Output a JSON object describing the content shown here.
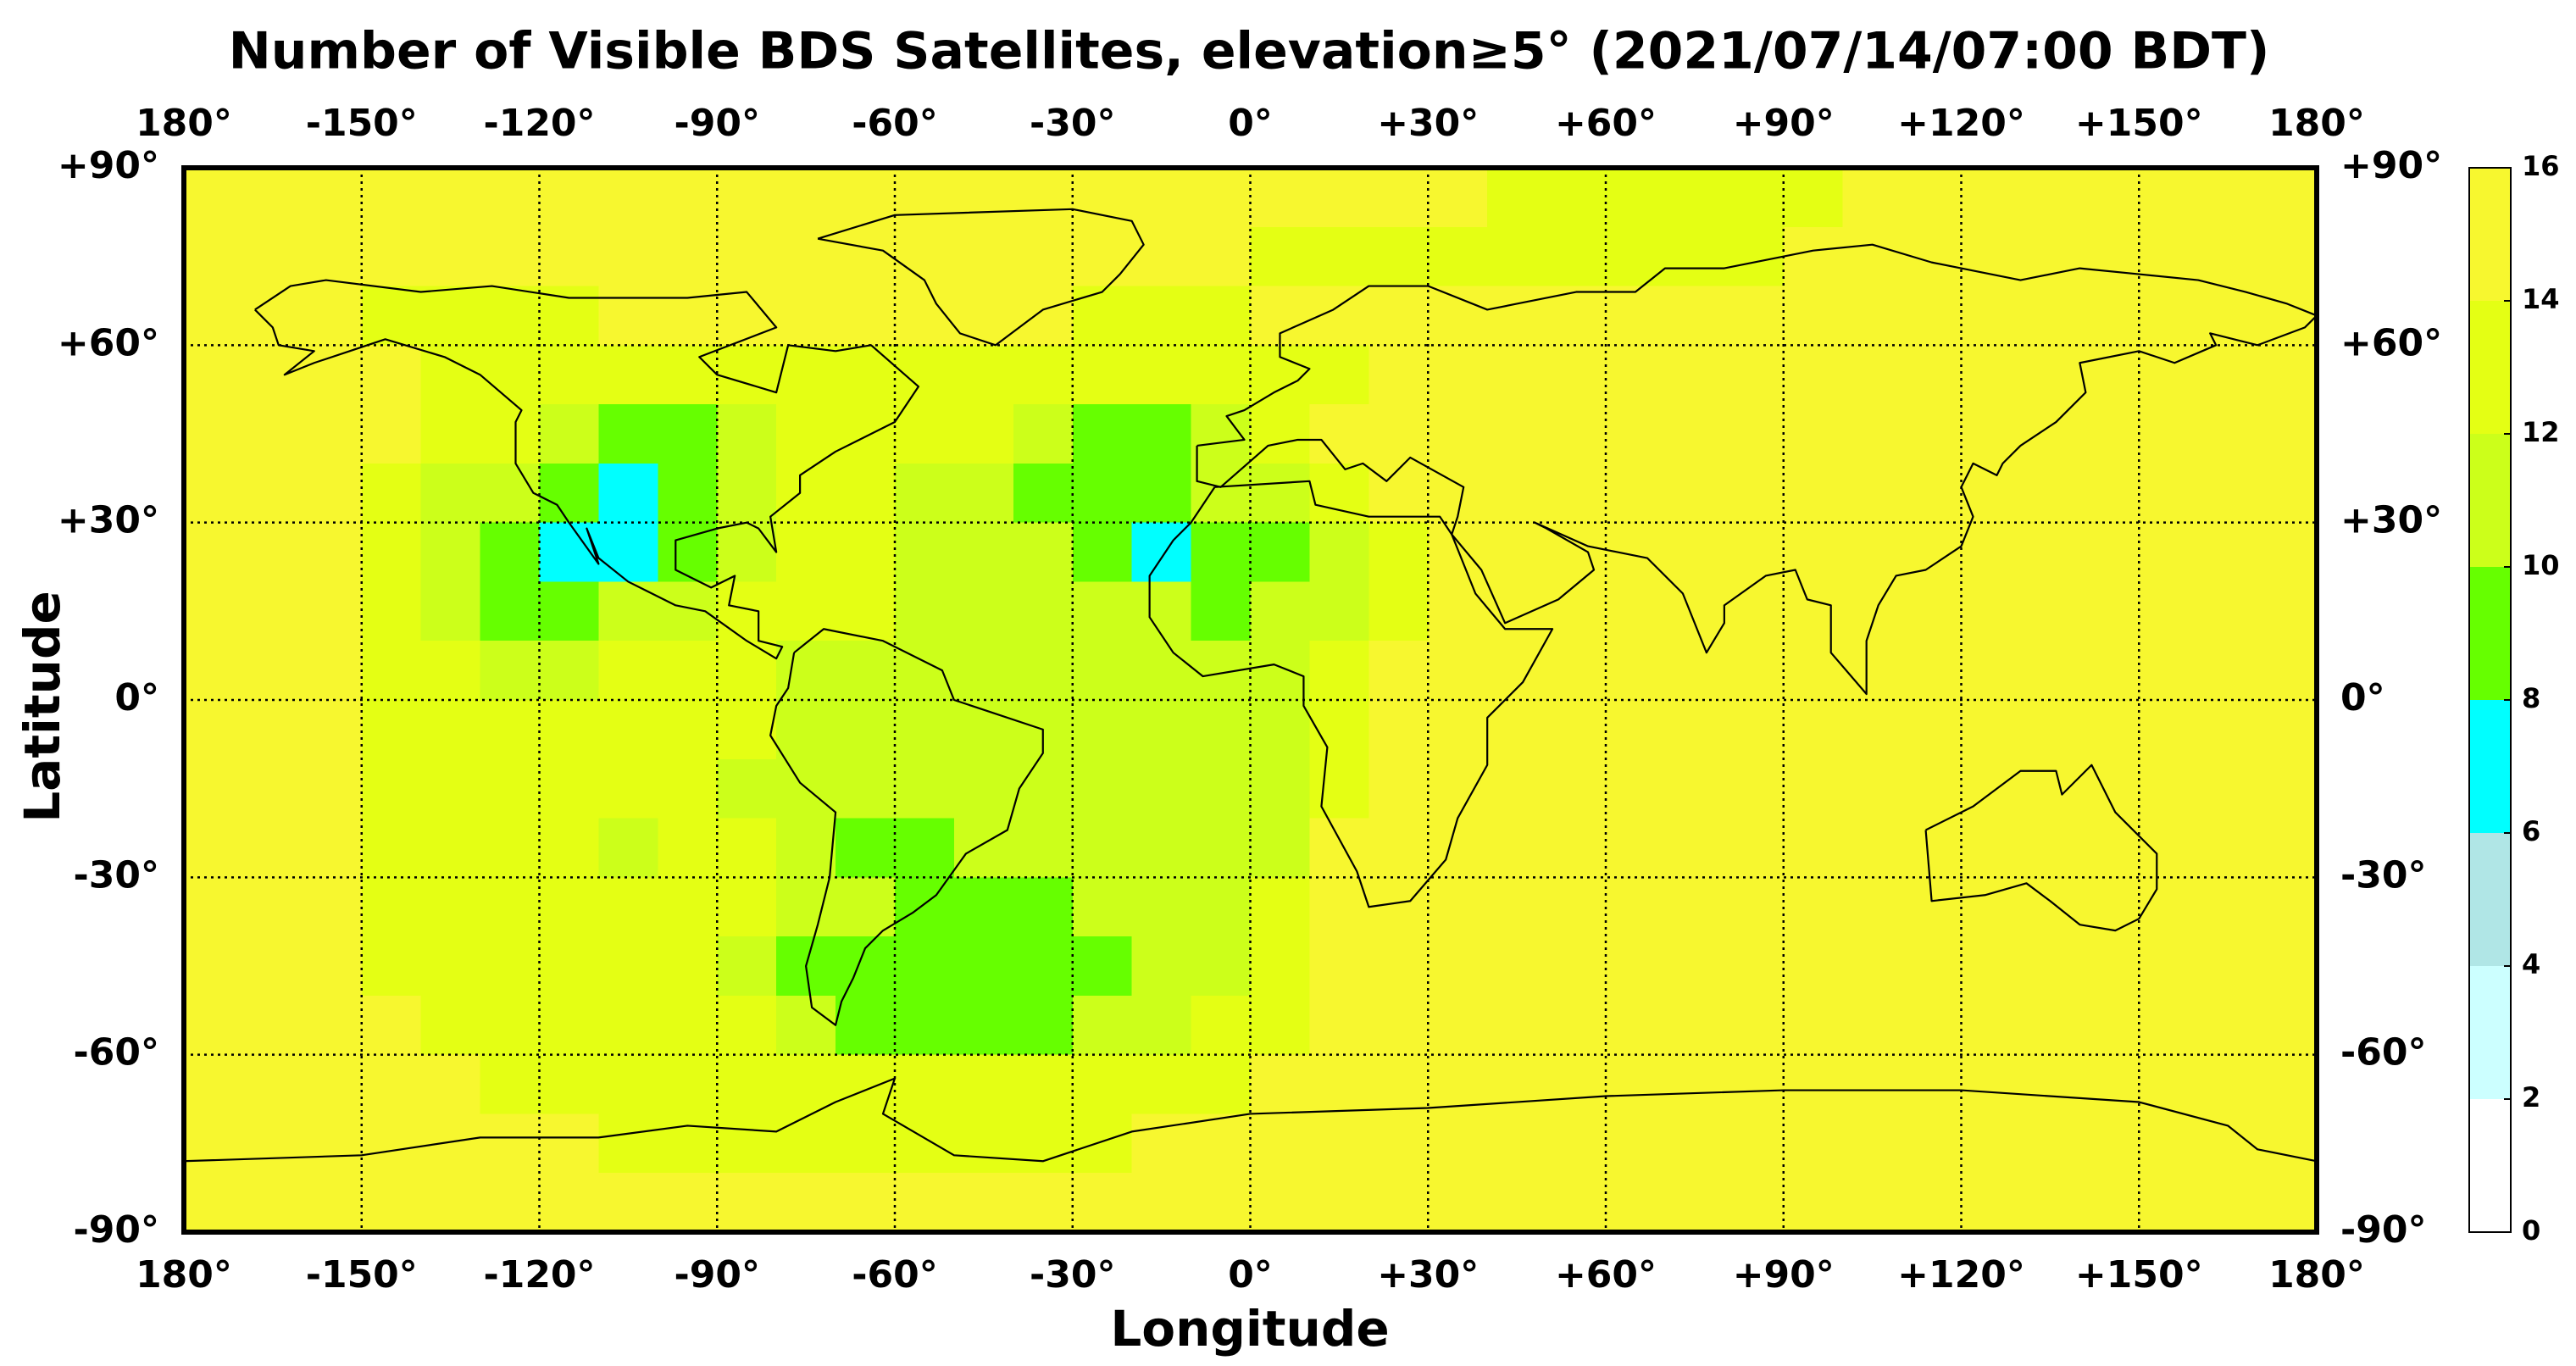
{
  "chart_data": {
    "type": "heatmap",
    "title": "Number of Visible BDS Satellites, elevation≥5° (2021/07/14/07:00 BDT)",
    "xlabel": "Longitude",
    "ylabel": "Latitude",
    "xlim": [
      -180,
      180
    ],
    "ylim": [
      -90,
      90
    ],
    "xticks": [
      {
        "value": -180,
        "label": "180°"
      },
      {
        "value": -150,
        "label": "-150°"
      },
      {
        "value": -120,
        "label": "-120°"
      },
      {
        "value": -90,
        "label": "-90°"
      },
      {
        "value": -60,
        "label": "-60°"
      },
      {
        "value": -30,
        "label": "-30°"
      },
      {
        "value": 0,
        "label": "0°"
      },
      {
        "value": 30,
        "label": "+30°"
      },
      {
        "value": 60,
        "label": "+60°"
      },
      {
        "value": 90,
        "label": "+90°"
      },
      {
        "value": 120,
        "label": "+120°"
      },
      {
        "value": 150,
        "label": "+150°"
      },
      {
        "value": 180,
        "label": "180°"
      }
    ],
    "yticks": [
      {
        "value": -90,
        "label": "-90°"
      },
      {
        "value": -60,
        "label": "-60°"
      },
      {
        "value": -30,
        "label": "-30°"
      },
      {
        "value": 0,
        "label": "0°"
      },
      {
        "value": 30,
        "label": "+30°"
      },
      {
        "value": 60,
        "label": "+60°"
      },
      {
        "value": 90,
        "label": "+90°"
      }
    ],
    "grid": true,
    "colorbar": {
      "lim": [
        0,
        16
      ],
      "ticks": [
        0,
        2,
        4,
        6,
        8,
        10,
        12,
        14,
        16
      ],
      "colors": [
        "#ffffff",
        "#ccffff",
        "#b0e6e6",
        "#00ffff",
        "#66ff00",
        "#ccff1a",
        "#e4ff14",
        "#f7f72f"
      ]
    },
    "values": [
      [
        15,
        15,
        15,
        15,
        15,
        15,
        15,
        15,
        15,
        15,
        15,
        15,
        15,
        15,
        15,
        15,
        15,
        15,
        15,
        15,
        15,
        15,
        13,
        13,
        13,
        13,
        13,
        13,
        15,
        15,
        15,
        15,
        15,
        15,
        15,
        15
      ],
      [
        15,
        15,
        15,
        15,
        15,
        15,
        15,
        15,
        15,
        15,
        15,
        15,
        15,
        15,
        15,
        15,
        15,
        15,
        13,
        13,
        13,
        13,
        13,
        13,
        13,
        13,
        13,
        15,
        15,
        15,
        15,
        15,
        15,
        15,
        15,
        15
      ],
      [
        15,
        15,
        15,
        13,
        13,
        13,
        13,
        15,
        15,
        15,
        15,
        15,
        15,
        15,
        15,
        13,
        13,
        13,
        15,
        15,
        15,
        15,
        15,
        15,
        15,
        15,
        15,
        15,
        15,
        15,
        15,
        15,
        15,
        15,
        15,
        15
      ],
      [
        15,
        15,
        15,
        15,
        13,
        13,
        13,
        13,
        13,
        13,
        13,
        13,
        13,
        13,
        13,
        13,
        13,
        13,
        13,
        13,
        15,
        15,
        15,
        15,
        15,
        15,
        15,
        15,
        15,
        15,
        15,
        15,
        15,
        15,
        15,
        15
      ],
      [
        15,
        15,
        15,
        15,
        13,
        13,
        11,
        9,
        9,
        11,
        13,
        13,
        13,
        13,
        11,
        9,
        9,
        11,
        13,
        15,
        15,
        15,
        15,
        15,
        15,
        15,
        15,
        15,
        15,
        15,
        15,
        15,
        15,
        15,
        15,
        15
      ],
      [
        15,
        15,
        15,
        13,
        11,
        11,
        9,
        7,
        9,
        11,
        13,
        13,
        11,
        11,
        9,
        9,
        9,
        11,
        11,
        13,
        15,
        15,
        15,
        15,
        15,
        15,
        15,
        15,
        15,
        15,
        15,
        15,
        15,
        15,
        15,
        15
      ],
      [
        15,
        15,
        15,
        13,
        11,
        9,
        7,
        7,
        9,
        11,
        13,
        13,
        11,
        11,
        11,
        9,
        7,
        9,
        9,
        11,
        13,
        15,
        15,
        15,
        15,
        15,
        15,
        15,
        15,
        15,
        15,
        15,
        15,
        15,
        15,
        15
      ],
      [
        15,
        15,
        15,
        13,
        11,
        9,
        9,
        11,
        11,
        13,
        13,
        13,
        11,
        11,
        11,
        11,
        11,
        9,
        11,
        11,
        13,
        15,
        15,
        15,
        15,
        15,
        15,
        15,
        15,
        15,
        15,
        15,
        15,
        15,
        15,
        15
      ],
      [
        15,
        15,
        15,
        13,
        13,
        11,
        11,
        13,
        13,
        13,
        11,
        11,
        11,
        11,
        11,
        11,
        11,
        11,
        11,
        13,
        15,
        15,
        15,
        15,
        15,
        15,
        15,
        15,
        15,
        15,
        15,
        15,
        15,
        15,
        15,
        15
      ],
      [
        15,
        15,
        15,
        13,
        13,
        13,
        13,
        13,
        13,
        13,
        11,
        11,
        11,
        11,
        11,
        11,
        11,
        11,
        11,
        13,
        15,
        15,
        15,
        15,
        15,
        15,
        15,
        15,
        15,
        15,
        15,
        15,
        15,
        15,
        15,
        15
      ],
      [
        15,
        15,
        15,
        13,
        13,
        13,
        13,
        13,
        13,
        11,
        11,
        11,
        11,
        11,
        11,
        11,
        11,
        11,
        11,
        13,
        15,
        15,
        15,
        15,
        15,
        15,
        15,
        15,
        15,
        15,
        15,
        15,
        15,
        15,
        15,
        15
      ],
      [
        15,
        15,
        15,
        13,
        13,
        13,
        13,
        11,
        13,
        13,
        11,
        9,
        9,
        11,
        11,
        11,
        11,
        11,
        11,
        15,
        15,
        15,
        15,
        15,
        15,
        15,
        15,
        15,
        15,
        15,
        15,
        15,
        15,
        15,
        15,
        15
      ],
      [
        15,
        15,
        15,
        13,
        13,
        13,
        13,
        13,
        13,
        13,
        11,
        11,
        9,
        9,
        9,
        11,
        11,
        11,
        13,
        15,
        15,
        15,
        15,
        15,
        15,
        15,
        15,
        15,
        15,
        15,
        15,
        15,
        15,
        15,
        15,
        15
      ],
      [
        15,
        15,
        15,
        13,
        13,
        13,
        13,
        13,
        13,
        11,
        9,
        9,
        9,
        9,
        9,
        9,
        11,
        11,
        13,
        15,
        15,
        15,
        15,
        15,
        15,
        15,
        15,
        15,
        15,
        15,
        15,
        15,
        15,
        15,
        15,
        15
      ],
      [
        15,
        15,
        15,
        15,
        13,
        13,
        13,
        13,
        13,
        13,
        11,
        9,
        9,
        9,
        9,
        11,
        11,
        13,
        13,
        15,
        15,
        15,
        15,
        15,
        15,
        15,
        15,
        15,
        15,
        15,
        15,
        15,
        15,
        15,
        15,
        15
      ],
      [
        15,
        15,
        15,
        15,
        15,
        13,
        13,
        13,
        13,
        13,
        13,
        13,
        13,
        13,
        13,
        13,
        13,
        13,
        15,
        15,
        15,
        15,
        15,
        15,
        15,
        15,
        15,
        15,
        15,
        15,
        15,
        15,
        15,
        15,
        15,
        15
      ],
      [
        15,
        15,
        15,
        15,
        15,
        15,
        15,
        13,
        13,
        13,
        13,
        13,
        13,
        13,
        13,
        13,
        15,
        15,
        15,
        15,
        15,
        15,
        15,
        15,
        15,
        15,
        15,
        15,
        15,
        15,
        15,
        15,
        15,
        15,
        15,
        15
      ],
      [
        15,
        15,
        15,
        15,
        15,
        15,
        15,
        15,
        15,
        15,
        15,
        15,
        15,
        15,
        15,
        15,
        15,
        15,
        15,
        15,
        15,
        15,
        15,
        15,
        15,
        15,
        15,
        15,
        15,
        15,
        15,
        15,
        15,
        15,
        15,
        15
      ]
    ]
  }
}
